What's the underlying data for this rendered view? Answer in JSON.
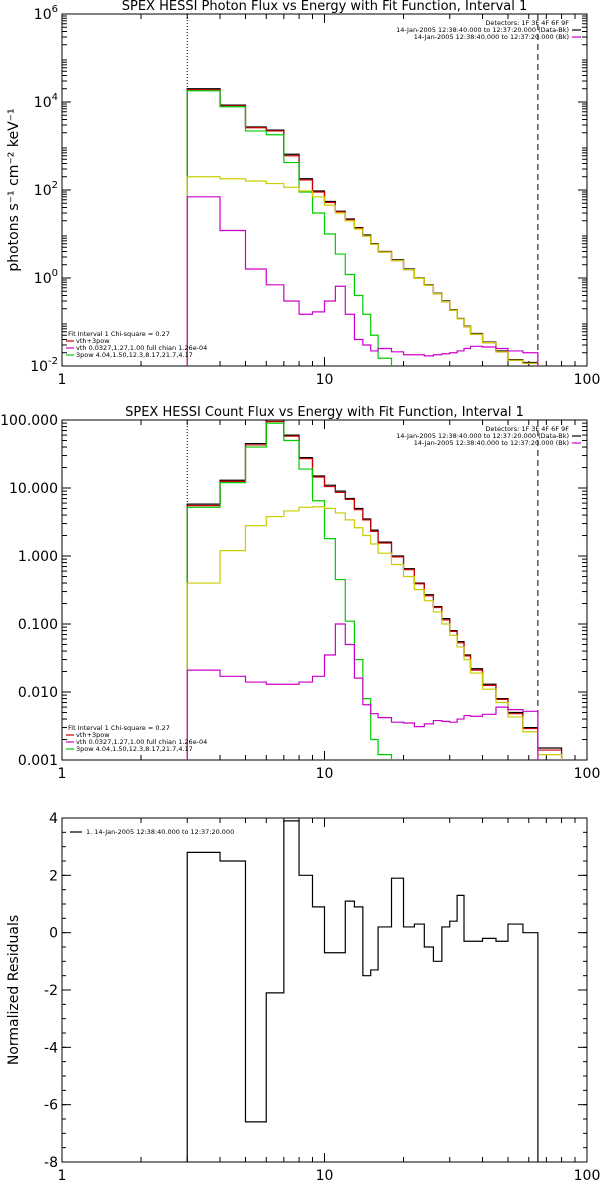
{
  "chart_data": [
    {
      "type": "line",
      "title": "SPEX HESSI Photon Flux vs Energy with Fit Function, Interval 1",
      "ylabel": "photons s⁻¹ cm⁻² keV⁻¹",
      "xscale": "log",
      "yscale": "log",
      "xlim": [
        1,
        100
      ],
      "ylim": [
        0.01,
        1000000
      ],
      "x_ticks": [
        "1",
        "10",
        "100"
      ],
      "y_ticks": [
        {
          "v": 0.01,
          "base": "10",
          "exp": "-2"
        },
        {
          "v": 1,
          "base": "10",
          "exp": "0"
        },
        {
          "v": 100,
          "base": "10",
          "exp": "2"
        },
        {
          "v": 10000,
          "base": "10",
          "exp": "4"
        },
        {
          "v": 1000000,
          "base": "10",
          "exp": "6"
        }
      ],
      "vlines": [
        {
          "x": 3,
          "style": "dotted"
        },
        {
          "x": 65,
          "style": "dashed"
        }
      ],
      "legend_top": [
        "Detectors: 1F 3F 4F 6F 9F",
        "14-Jan-2005 12:38:40.000 to 12:37:20.000 (Data-Bk)",
        "14-Jan-2005 12:38:40.000 to 12:37:20.000 (Bk)"
      ],
      "legend_top_colors": [
        "",
        "#000000",
        "#cc00cc"
      ],
      "legend_bottom": [
        "Fit Interval 1   Chi-square = 0.27",
        "vth+3pow",
        "vth 0.0327,1.27,1.00  full chian 1.26e-04",
        "3pow 4.04,1.50,12.3,8.17,21.7,4.17"
      ],
      "legend_bottom_colors": [
        "",
        "#cc0000",
        "#cc00cc",
        "#00cc00",
        "#cccc00"
      ],
      "edges": [
        3,
        4,
        5,
        6,
        7,
        8,
        9,
        10,
        11,
        12,
        13,
        14,
        15,
        16,
        18,
        20,
        22,
        24,
        26,
        28,
        30,
        32,
        34,
        36,
        40,
        45,
        50,
        57,
        65
      ],
      "series": [
        {
          "name": "Data-Bk",
          "color": "#000000",
          "values": [
            20000,
            8500,
            2700,
            2300,
            650,
            180,
            95,
            55,
            33,
            22,
            14,
            9.5,
            6,
            4,
            2.6,
            1.6,
            1,
            0.7,
            0.45,
            0.3,
            0.19,
            0.12,
            0.08,
            0.055,
            0.035,
            0.022,
            0.014,
            0.012
          ]
        },
        {
          "name": "vth+3pow",
          "color": "#cc0000",
          "values": [
            19000,
            8200,
            2600,
            2200,
            600,
            170,
            90,
            52,
            32,
            21,
            13.5,
            9,
            5.8,
            3.9,
            2.5,
            1.55,
            0.98,
            0.68,
            0.44,
            0.29,
            0.185,
            0.118,
            0.078,
            0.053,
            0.034,
            0.021,
            0.0135,
            0.0115
          ]
        },
        {
          "name": "vth",
          "color": "#00cc00",
          "values": [
            18000,
            7800,
            2200,
            1800,
            420,
            90,
            30,
            10,
            3.5,
            1.2,
            0.4,
            0.15,
            0.05,
            0.015,
            0.005
          ]
        },
        {
          "name": "3pow",
          "color": "#cccc00",
          "values": [
            200,
            180,
            160,
            140,
            115,
            95,
            70,
            45,
            30,
            20,
            13,
            9,
            5.8,
            3.9,
            2.5,
            1.55,
            0.98,
            0.68,
            0.44,
            0.29,
            0.185,
            0.118,
            0.078,
            0.053,
            0.034,
            0.021,
            0.0135,
            0.0115
          ]
        },
        {
          "name": "Bk",
          "color": "#cc00cc",
          "values": [
            70,
            12,
            1.6,
            0.7,
            0.3,
            0.15,
            0.17,
            0.3,
            0.65,
            0.15,
            0.04,
            0.03,
            0.022,
            0.025,
            0.021,
            0.018,
            0.018,
            0.017,
            0.018,
            0.019,
            0.02,
            0.022,
            0.025,
            0.028,
            0.027,
            0.025,
            0.022,
            0.02
          ]
        }
      ]
    },
    {
      "type": "line",
      "title": "SPEX HESSI Count Flux vs Energy with Fit Function, Interval 1",
      "xscale": "log",
      "yscale": "log",
      "xlim": [
        1,
        100
      ],
      "ylim": [
        0.001,
        100
      ],
      "x_ticks": [
        "1",
        "10",
        "100"
      ],
      "y_ticks": [
        {
          "v": 0.001,
          "label": "0.001"
        },
        {
          "v": 0.01,
          "label": "0.010"
        },
        {
          "v": 0.1,
          "label": "0.100"
        },
        {
          "v": 1,
          "label": "1.000"
        },
        {
          "v": 10,
          "label": "10.000"
        },
        {
          "v": 100,
          "label": "100.000"
        }
      ],
      "vlines": [
        {
          "x": 3,
          "style": "dotted"
        },
        {
          "x": 65,
          "style": "dashed"
        }
      ],
      "legend_top": [
        "Detectors: 1F 3F 4F 6F 9F",
        "14-Jan-2005 12:38:40.000 to 12:37:20.000 (Data-Bk)",
        "14-Jan-2005 12:38:40.000 to 12:37:20.000 (Bk)"
      ],
      "legend_top_colors": [
        "",
        "#000000",
        "#cc00cc"
      ],
      "legend_bottom": [
        "Fit Interval 1   Chi-square = 0.27",
        "vth+3pow",
        "vth 0.0327,1.27,1.00  full chian 1.26e-04",
        "3pow 4.04,1.50,12.3,8.17,21.7,4.17"
      ],
      "legend_bottom_colors": [
        "",
        "#cc0000",
        "#cc00cc",
        "#00cc00",
        "#cccc00"
      ],
      "edges": [
        3,
        4,
        5,
        6,
        7,
        8,
        9,
        10,
        11,
        12,
        13,
        14,
        15,
        16,
        18,
        20,
        22,
        24,
        26,
        28,
        30,
        32,
        34,
        36,
        40,
        45,
        50,
        57,
        65,
        80
      ],
      "series": [
        {
          "name": "Data-Bk",
          "color": "#000000",
          "values": [
            5.8,
            13,
            45,
            100,
            60,
            28,
            15,
            11,
            9,
            7,
            5,
            3.5,
            2.4,
            1.6,
            1,
            0.65,
            0.4,
            0.27,
            0.18,
            0.12,
            0.08,
            0.055,
            0.035,
            0.022,
            0.013,
            0.008,
            0.005,
            0.003,
            0.0015
          ]
        },
        {
          "name": "vth+3pow",
          "color": "#cc0000",
          "values": [
            5.5,
            12.5,
            43,
            95,
            58,
            27,
            14.5,
            10.5,
            8.6,
            6.8,
            4.8,
            3.4,
            2.3,
            1.55,
            0.97,
            0.63,
            0.39,
            0.26,
            0.175,
            0.115,
            0.078,
            0.053,
            0.034,
            0.021,
            0.0125,
            0.0078,
            0.0048,
            0.0029,
            0.0014
          ]
        },
        {
          "name": "vth",
          "color": "#00cc00",
          "values": [
            5.2,
            12,
            40,
            90,
            50,
            19,
            6.5,
            1.8,
            0.45,
            0.11,
            0.03,
            0.008,
            0.002,
            0.0012
          ]
        },
        {
          "name": "3pow",
          "color": "#cccc00",
          "values": [
            0.4,
            1.2,
            2.8,
            3.8,
            4.6,
            5.2,
            5.3,
            5,
            4.3,
            3.4,
            2.6,
            2,
            1.5,
            1.1,
            0.75,
            0.5,
            0.32,
            0.22,
            0.15,
            0.1,
            0.068,
            0.046,
            0.03,
            0.019,
            0.011,
            0.007,
            0.0043,
            0.0026,
            0.0012
          ]
        },
        {
          "name": "Bk",
          "color": "#cc00cc",
          "values": [
            0.021,
            0.017,
            0.014,
            0.013,
            0.013,
            0.014,
            0.017,
            0.035,
            0.1,
            0.05,
            0.016,
            0.0065,
            0.0048,
            0.0042,
            0.0036,
            0.0035,
            0.0031,
            0.0034,
            0.0038,
            0.0037,
            0.0036,
            0.004,
            0.0045,
            0.0044,
            0.0047,
            0.006,
            0.0055,
            0.0052
          ]
        }
      ]
    },
    {
      "type": "line",
      "ylabel": "Normalized Residuals",
      "xscale": "log",
      "yscale": "linear",
      "xlim": [
        1,
        100
      ],
      "ylim": [
        -8,
        4
      ],
      "x_ticks": [
        "1",
        "10",
        "100"
      ],
      "y_ticks": [
        {
          "v": -8,
          "label": "-8"
        },
        {
          "v": -6,
          "label": "-6"
        },
        {
          "v": -4,
          "label": "-4"
        },
        {
          "v": -2,
          "label": "-2"
        },
        {
          "v": 0,
          "label": "0"
        },
        {
          "v": 2,
          "label": "2"
        },
        {
          "v": 4,
          "label": "4"
        }
      ],
      "legend_top": [
        "1. 14-Jan-2005 12:38:40.000 to 12:37:20.000"
      ],
      "legend_top_colors": [
        "#000000"
      ],
      "edges": [
        3,
        4,
        5,
        6,
        7,
        8,
        9,
        10,
        11,
        12,
        13,
        14,
        15,
        16,
        18,
        20,
        22,
        24,
        26,
        28,
        30,
        32,
        34,
        36,
        40,
        45,
        50,
        57,
        65
      ],
      "series": [
        {
          "name": "",
          "color": "#000000",
          "values": [
            2.8,
            2.5,
            -6.6,
            -2.1,
            3.9,
            2.0,
            0.9,
            -0.7,
            -0.7,
            1.1,
            0.9,
            -1.5,
            -1.3,
            0.2,
            1.9,
            0.2,
            0.3,
            -0.5,
            -1.0,
            0.2,
            0.4,
            1.3,
            -0.3,
            -0.3,
            -0.2,
            -0.3,
            0.3,
            0.0
          ]
        }
      ]
    }
  ]
}
